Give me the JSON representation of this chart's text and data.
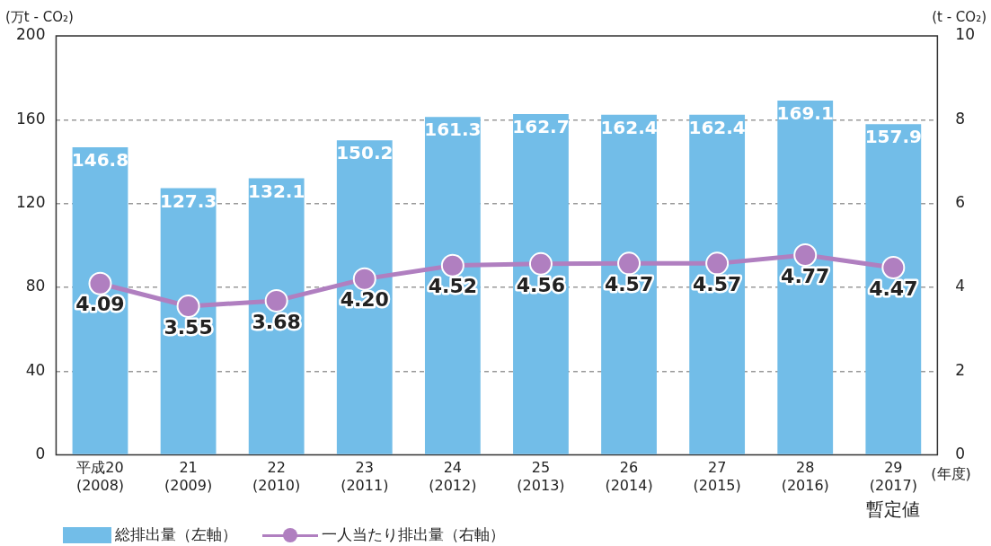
{
  "chart_data": {
    "type": "bar",
    "xlabel": "(年度)",
    "ylabel": "(万t - CO₂)",
    "y2label": "(t - CO₂)",
    "categories": [
      "平成20\n(2008)",
      "21\n(2009)",
      "22\n(2010)",
      "23\n(2011)",
      "24\n(2012)",
      "25\n(2013)",
      "26\n(2014)",
      "27\n(2015)",
      "28\n(2016)",
      "29\n(2017)"
    ],
    "series": [
      {
        "name": "総排出量（左軸）",
        "color": "#72bde8",
        "values": [
          146.8,
          127.3,
          132.1,
          150.2,
          161.3,
          162.7,
          162.4,
          162.4,
          169.1,
          157.9
        ],
        "value_labels": [
          "146.8",
          "127.3",
          "132.1",
          "150.2",
          "161.3",
          "162.7",
          "162.4",
          "162.4",
          "169.1",
          "157.9"
        ]
      },
      {
        "name": "一人当たり排出量（右軸）",
        "type": "line",
        "axis": "y2",
        "color": "#b07fc0",
        "marker": "circle",
        "values": [
          4.09,
          3.55,
          3.68,
          4.2,
          4.52,
          4.56,
          4.57,
          4.57,
          4.77,
          4.47
        ],
        "value_labels": [
          "4.09",
          "3.55",
          "3.68",
          "4.20",
          "4.52",
          "4.56",
          "4.57",
          "4.57",
          "4.77",
          "4.47"
        ]
      }
    ],
    "ylim": [
      0,
      200
    ],
    "yticks": [
      0,
      40,
      80,
      120,
      160,
      200
    ],
    "y2lim": [
      0,
      10
    ],
    "y2ticks": [
      0,
      2,
      4,
      6,
      8,
      10
    ],
    "grid": "y",
    "legend": "bottom left",
    "annotations": [
      "暫定値"
    ]
  }
}
